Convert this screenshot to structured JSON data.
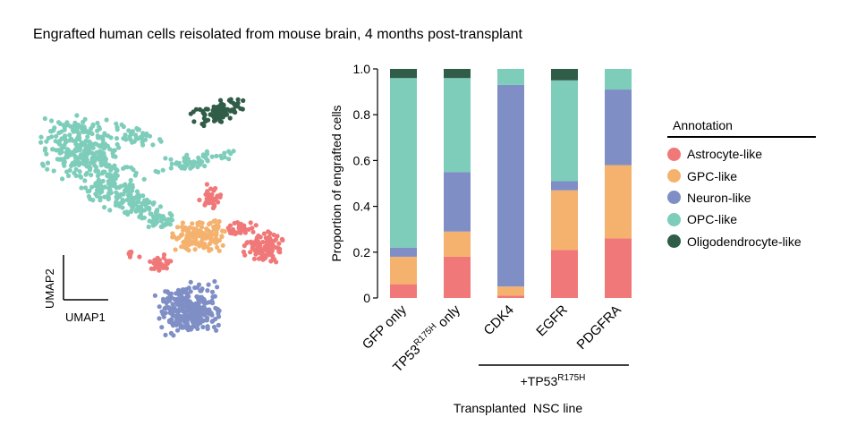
{
  "figure": {
    "title": "Engrafted human cells reisolated from mouse brain, 4 months post-transplant"
  },
  "umap": {
    "xlabel": "UMAP1",
    "ylabel": "UMAP2"
  },
  "legend": {
    "title": "Annotation",
    "items": [
      {
        "label": "Astrocyte-like",
        "color": "#f07878"
      },
      {
        "label": "GPC-like",
        "color": "#f5b26e"
      },
      {
        "label": "Neuron-like",
        "color": "#7f8fc6"
      },
      {
        "label": "OPC-like",
        "color": "#7ecdbb"
      },
      {
        "label": "Oligodendrocyte-like",
        "color": "#2f5d48"
      }
    ]
  },
  "chart_data": {
    "type": "bar",
    "stacked": true,
    "title": "",
    "ylabel": "Proportion of engrafted cells",
    "xlabel": "Transplanted  NSC line",
    "ylim": [
      0,
      1
    ],
    "yticks": [
      "0",
      "0.2",
      "0.4",
      "0.6",
      "0.8",
      "1.0"
    ],
    "categories": [
      "GFP only",
      "TP53 R175H only",
      "CDK4",
      "EGFR",
      "PDGFRA"
    ],
    "group_bracket": {
      "label": "+TP53",
      "superscript": "R175H",
      "covers": [
        "CDK4",
        "EGFR",
        "PDGFRA"
      ]
    },
    "series": [
      {
        "name": "Astrocyte-like",
        "color": "#f07878",
        "values": [
          0.06,
          0.18,
          0.01,
          0.21,
          0.26
        ]
      },
      {
        "name": "GPC-like",
        "color": "#f5b26e",
        "values": [
          0.12,
          0.11,
          0.04,
          0.26,
          0.32
        ]
      },
      {
        "name": "Neuron-like",
        "color": "#7f8fc6",
        "values": [
          0.04,
          0.26,
          0.88,
          0.04,
          0.33
        ]
      },
      {
        "name": "OPC-like",
        "color": "#7ecdbb",
        "values": [
          0.74,
          0.41,
          0.07,
          0.44,
          0.09
        ]
      },
      {
        "name": "Oligodendrocyte-like",
        "color": "#2f5d48",
        "values": [
          0.04,
          0.04,
          0.0,
          0.05,
          0.0
        ]
      }
    ]
  }
}
